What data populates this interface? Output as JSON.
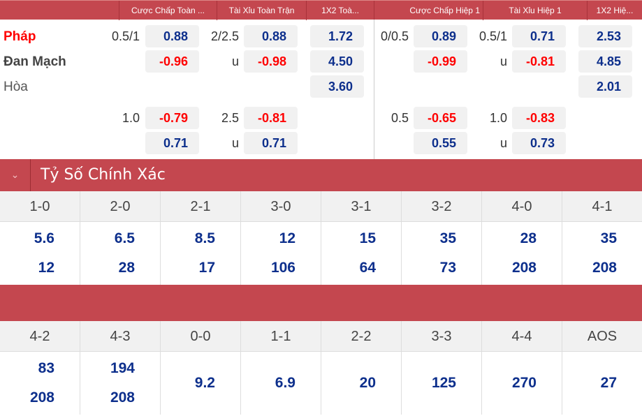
{
  "columns": {
    "hdp_full": "Cược Chấp Toàn ...",
    "ou_full": "Tài Xỉu Toàn Trận",
    "x12_full": "1X2 Toà...",
    "hdp_h1": "Cược Chấp Hiệp 1",
    "ou_h1": "Tài Xỉu Hiệp 1",
    "x12_h1": "1X2 Hiệ..."
  },
  "teams": {
    "home": "Pháp",
    "away": "Đan Mạch",
    "draw": "Hòa"
  },
  "colors": {
    "header": "#c4474f",
    "blue": "#0d2f8c",
    "red": "#ff0000"
  },
  "odds": [
    {
      "row": 0,
      "hdp_line": "0.5/1",
      "hdp": "0.88",
      "ou_line": "2/2.5",
      "ou": "0.88",
      "x12": "1.72",
      "hdp1_line": "0/0.5",
      "hdp1": "0.89",
      "ou1_line": "0.5/1",
      "ou1": "0.71",
      "x121": "2.53"
    },
    {
      "row": 1,
      "hdp_line": "",
      "hdp": "-0.96",
      "ou_line": "u",
      "ou": "-0.98",
      "x12": "4.50",
      "hdp1_line": "",
      "hdp1": "-0.99",
      "ou1_line": "u",
      "ou1": "-0.81",
      "x121": "4.85"
    },
    {
      "row": 2,
      "hdp_line": "",
      "hdp": "",
      "ou_line": "",
      "ou": "",
      "x12": "3.60",
      "hdp1_line": "",
      "hdp1": "",
      "ou1_line": "",
      "ou1": "",
      "x121": "2.01"
    },
    {
      "row": 3,
      "hdp_line": "1.0",
      "hdp": "-0.79",
      "ou_line": "2.5",
      "ou": "-0.81",
      "x12": "",
      "hdp1_line": "0.5",
      "hdp1": "-0.65",
      "ou1_line": "1.0",
      "ou1": "-0.83",
      "x121": ""
    },
    {
      "row": 4,
      "hdp_line": "",
      "hdp": "0.71",
      "ou_line": "u",
      "ou": "0.71",
      "x12": "",
      "hdp1_line": "",
      "hdp1": "0.55",
      "ou1_line": "u",
      "ou1": "0.73",
      "x121": ""
    }
  ],
  "correct_score": {
    "title": "Tỷ Số Chính Xác",
    "grid1": [
      {
        "score": "1-0",
        "v": [
          "5.6",
          "12"
        ]
      },
      {
        "score": "2-0",
        "v": [
          "6.5",
          "28"
        ]
      },
      {
        "score": "2-1",
        "v": [
          "8.5",
          "17"
        ]
      },
      {
        "score": "3-0",
        "v": [
          "12",
          "106"
        ]
      },
      {
        "score": "3-1",
        "v": [
          "15",
          "64"
        ]
      },
      {
        "score": "3-2",
        "v": [
          "35",
          "73"
        ]
      },
      {
        "score": "4-0",
        "v": [
          "28",
          "208"
        ]
      },
      {
        "score": "4-1",
        "v": [
          "35",
          "208"
        ]
      }
    ],
    "grid2": [
      {
        "score": "4-2",
        "v": [
          "83",
          "208"
        ]
      },
      {
        "score": "4-3",
        "v": [
          "194",
          "208"
        ]
      },
      {
        "score": "0-0",
        "v": [
          "9.2"
        ]
      },
      {
        "score": "1-1",
        "v": [
          "6.9"
        ]
      },
      {
        "score": "2-2",
        "v": [
          "20"
        ]
      },
      {
        "score": "3-3",
        "v": [
          "125"
        ]
      },
      {
        "score": "4-4",
        "v": [
          "270"
        ]
      },
      {
        "score": "AOS",
        "v": [
          "27"
        ]
      }
    ]
  }
}
